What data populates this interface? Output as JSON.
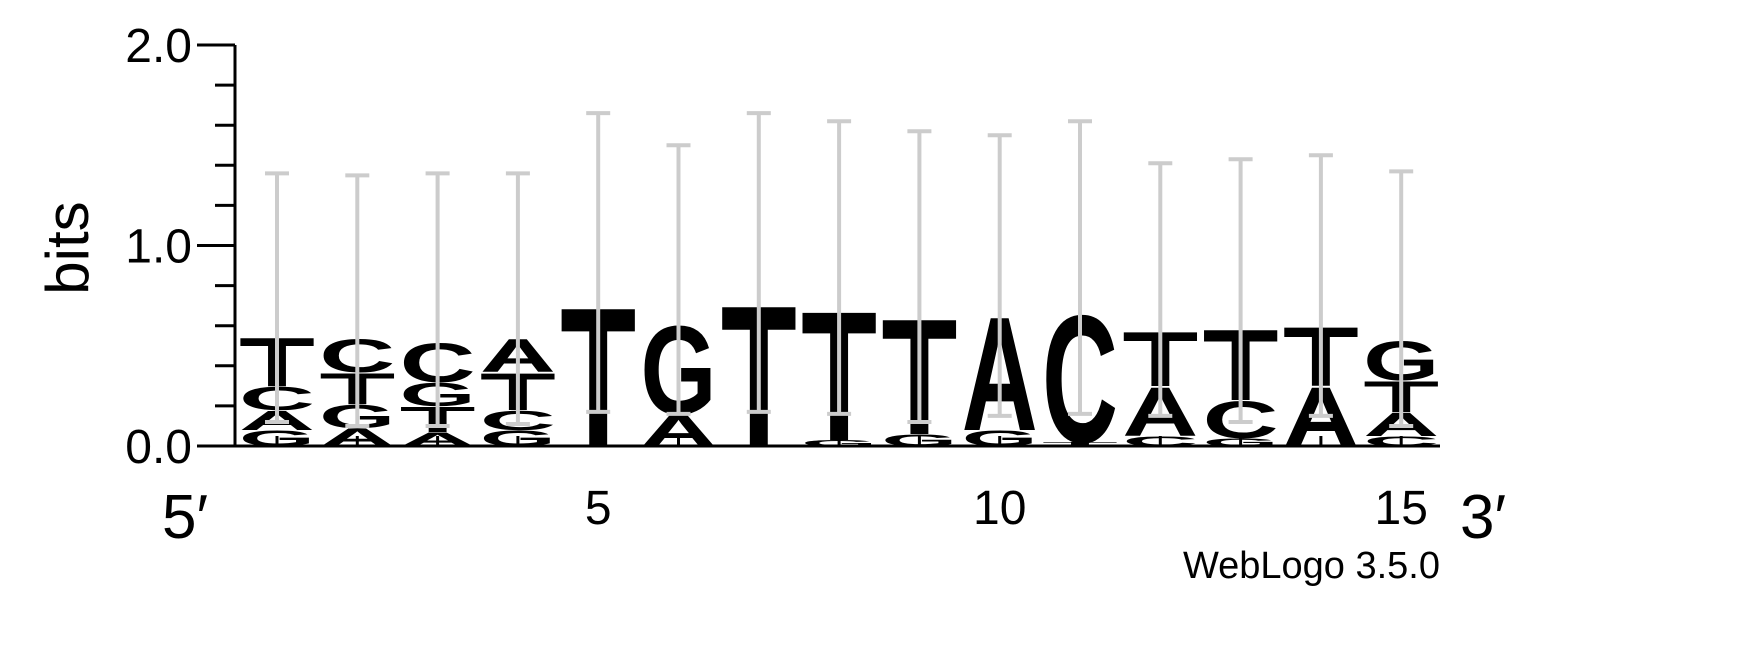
{
  "chart_data": {
    "type": "sequence-logo",
    "ylabel": "bits",
    "ylim": [
      0,
      2.0
    ],
    "y_ticks": [
      {
        "value": 0.0,
        "label": "0.0"
      },
      {
        "value": 1.0,
        "label": "1.0"
      },
      {
        "value": 2.0,
        "label": "2.0"
      }
    ],
    "x_ticks": [
      {
        "position": 5,
        "label": "5"
      },
      {
        "position": 10,
        "label": "10"
      },
      {
        "position": 15,
        "label": "15"
      }
    ],
    "end_labels": {
      "left": "5′",
      "right": "3′"
    },
    "footer": "WebLogo 3.5.0",
    "colors": {
      "A": "#008a00",
      "C": "#0000ff",
      "G": "#ffa500",
      "T": "#ff0000",
      "errorbar": "#cccccc"
    },
    "positions": [
      {
        "pos": 1,
        "stack": [
          {
            "letter": "G",
            "height": 0.08
          },
          {
            "letter": "A",
            "height": 0.1
          },
          {
            "letter": "C",
            "height": 0.12
          },
          {
            "letter": "T",
            "height": 0.25
          }
        ],
        "error": [
          0.12,
          1.36
        ]
      },
      {
        "pos": 2,
        "stack": [
          {
            "letter": "A",
            "height": 0.09
          },
          {
            "letter": "G",
            "height": 0.12
          },
          {
            "letter": "T",
            "height": 0.16
          },
          {
            "letter": "C",
            "height": 0.17
          }
        ],
        "error": [
          0.1,
          1.35
        ]
      },
      {
        "pos": 3,
        "stack": [
          {
            "letter": "A",
            "height": 0.07
          },
          {
            "letter": "T",
            "height": 0.13
          },
          {
            "letter": "G",
            "height": 0.12
          },
          {
            "letter": "C",
            "height": 0.2
          }
        ],
        "error": [
          0.1,
          1.36
        ]
      },
      {
        "pos": 4,
        "stack": [
          {
            "letter": "G",
            "height": 0.08
          },
          {
            "letter": "C",
            "height": 0.1
          },
          {
            "letter": "T",
            "height": 0.19
          },
          {
            "letter": "A",
            "height": 0.17
          }
        ],
        "error": [
          0.11,
          1.36
        ]
      },
      {
        "pos": 5,
        "stack": [
          {
            "letter": "T",
            "height": 0.71
          }
        ],
        "error": [
          0.17,
          1.66
        ]
      },
      {
        "pos": 6,
        "stack": [
          {
            "letter": "A",
            "height": 0.16
          },
          {
            "letter": "G",
            "height": 0.45
          }
        ],
        "error": [
          0.16,
          1.5
        ]
      },
      {
        "pos": 7,
        "stack": [
          {
            "letter": "T",
            "height": 0.72
          }
        ],
        "error": [
          0.17,
          1.66
        ]
      },
      {
        "pos": 8,
        "stack": [
          {
            "letter": "G",
            "height": 0.03
          },
          {
            "letter": "T",
            "height": 0.66
          }
        ],
        "error": [
          0.16,
          1.62
        ]
      },
      {
        "pos": 9,
        "stack": [
          {
            "letter": "G",
            "height": 0.06
          },
          {
            "letter": "T",
            "height": 0.59
          }
        ],
        "error": [
          0.12,
          1.57
        ]
      },
      {
        "pos": 10,
        "stack": [
          {
            "letter": "G",
            "height": 0.08
          },
          {
            "letter": "A",
            "height": 0.58
          }
        ],
        "error": [
          0.15,
          1.55
        ]
      },
      {
        "pos": 11,
        "stack": [
          {
            "letter": "T",
            "height": 0.02
          },
          {
            "letter": "C",
            "height": 0.65
          }
        ],
        "error": [
          0.16,
          1.62
        ]
      },
      {
        "pos": 12,
        "stack": [
          {
            "letter": "C",
            "height": 0.05
          },
          {
            "letter": "A",
            "height": 0.25
          },
          {
            "letter": "T",
            "height": 0.28
          }
        ],
        "error": [
          0.15,
          1.41
        ]
      },
      {
        "pos": 13,
        "stack": [
          {
            "letter": "G",
            "height": 0.04
          },
          {
            "letter": "C",
            "height": 0.19
          },
          {
            "letter": "T",
            "height": 0.36
          }
        ],
        "error": [
          0.12,
          1.43
        ]
      },
      {
        "pos": 14,
        "stack": [
          {
            "letter": "A",
            "height": 0.3
          },
          {
            "letter": "T",
            "height": 0.3
          }
        ],
        "error": [
          0.15,
          1.45
        ]
      },
      {
        "pos": 15,
        "stack": [
          {
            "letter": "C",
            "height": 0.05
          },
          {
            "letter": "A",
            "height": 0.12
          },
          {
            "letter": "T",
            "height": 0.16
          },
          {
            "letter": "G",
            "height": 0.2
          }
        ],
        "error": [
          0.1,
          1.37
        ]
      }
    ]
  }
}
